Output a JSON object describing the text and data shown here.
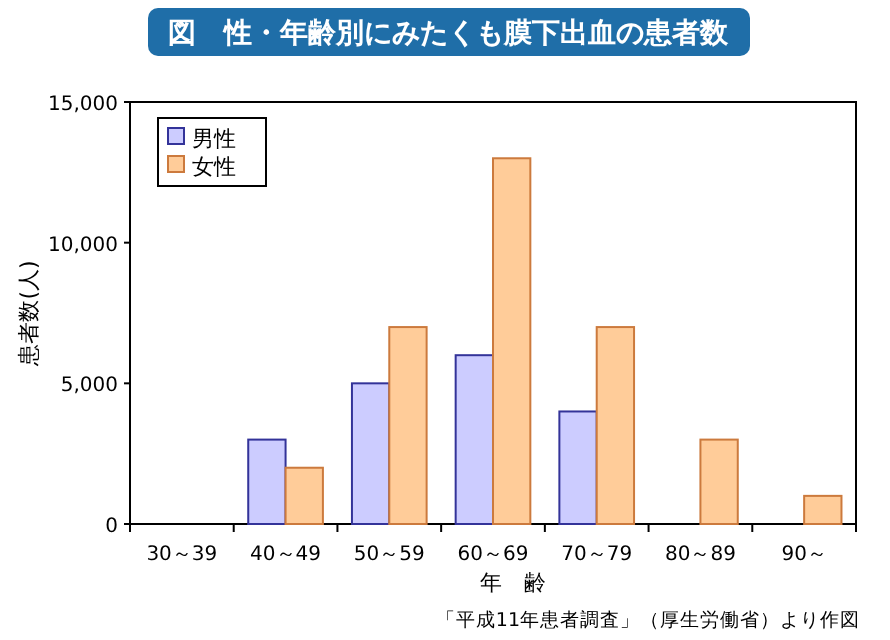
{
  "chart_data": {
    "type": "bar",
    "title": "図　性・年齢別にみたくも膜下出血の患者数",
    "categories": [
      "30～39",
      "40～49",
      "50～59",
      "60～69",
      "70～79",
      "80～89",
      "90～"
    ],
    "series": [
      {
        "name": "男性",
        "color": "#ccccff",
        "values": [
          0,
          3000,
          5000,
          6000,
          4000,
          0,
          0
        ]
      },
      {
        "name": "女性",
        "color": "#ffcc99",
        "values": [
          0,
          2000,
          7000,
          13000,
          7000,
          3000,
          1000
        ]
      }
    ],
    "xlabel": "年　齢",
    "ylabel": "患者数(人)",
    "ylim": [
      0,
      15000
    ],
    "yticks": [
      {
        "value": 0,
        "label": "0"
      },
      {
        "value": 5000,
        "label": "5,000"
      },
      {
        "value": 10000,
        "label": "10,000"
      },
      {
        "value": 15000,
        "label": "15,000"
      }
    ],
    "legend": "top left",
    "grid": false,
    "annotations": [
      "「平成11年患者調査」（厚生労働省）より作図"
    ]
  }
}
